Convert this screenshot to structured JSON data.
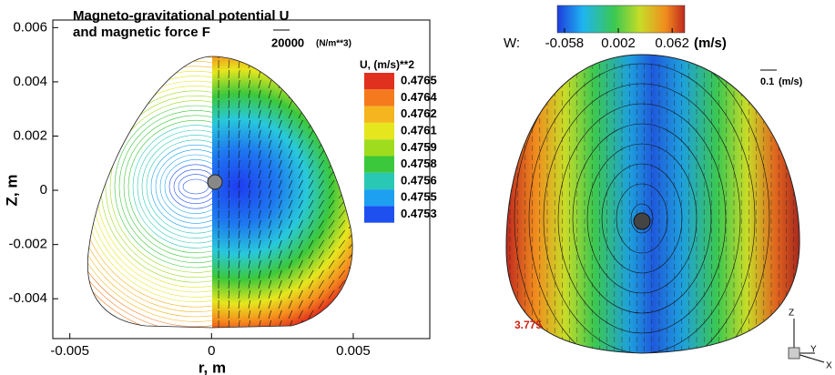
{
  "chart_data": [
    {
      "type": "contour",
      "title": "Magneto-gravitational potential U",
      "subtitle": "and magnetic force F",
      "x_label": "r, m",
      "y_label": "Z, m",
      "xlim": [
        -0.0056,
        0.0077
      ],
      "ylim": [
        -0.00547,
        0.00628
      ],
      "xticks": [
        -0.005,
        0,
        0.005
      ],
      "yticks": [
        0.006,
        0.004,
        0.002,
        0,
        -0.002,
        -0.004
      ],
      "vector_reference": 20000,
      "vector_unit": "(N/m**3)",
      "colorbar": {
        "title": "U, (m/s)**2",
        "levels": [
          0.4765,
          0.4764,
          0.4762,
          0.4761,
          0.4759,
          0.4758,
          0.4756,
          0.4755,
          0.4753
        ],
        "colors": [
          "#e0301e",
          "#f57a1e",
          "#f5b51e",
          "#e6e61e",
          "#a0dc1e",
          "#3cc83c",
          "#28c8b4",
          "#1ea0f0",
          "#1e50f0"
        ]
      }
    },
    {
      "type": "surface3d",
      "colorbar": {
        "label": "W:",
        "unit": "(m/s)",
        "lim": [
          -0.066,
          0.076
        ],
        "ticks": [
          -0.058,
          0.002,
          0.062
        ]
      },
      "vector_reference": 0.1,
      "vector_unit": "(m/s)",
      "annotation": 3.775,
      "axis_labels": [
        "Z",
        "Y",
        "X"
      ]
    }
  ]
}
